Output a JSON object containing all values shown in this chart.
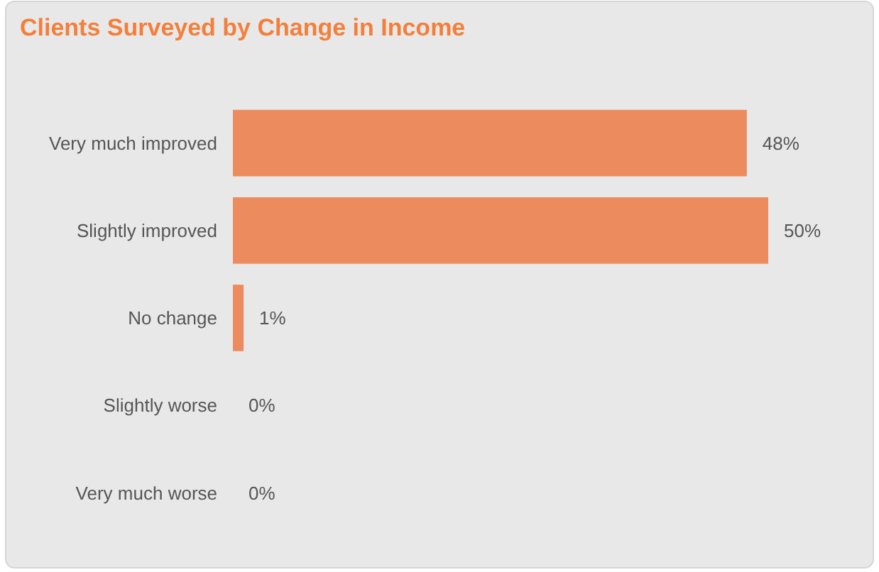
{
  "chart_data": {
    "type": "bar",
    "orientation": "horizontal",
    "title": "Clients Surveyed by Change in Income",
    "categories": [
      "Very much improved",
      "Slightly improved",
      "No change",
      "Slightly worse",
      "Very much worse"
    ],
    "values": [
      48,
      50,
      1,
      0,
      0
    ],
    "value_labels": [
      "48%",
      "50%",
      "1%",
      "0%",
      "0%"
    ],
    "color": "#ec8b5e"
  }
}
